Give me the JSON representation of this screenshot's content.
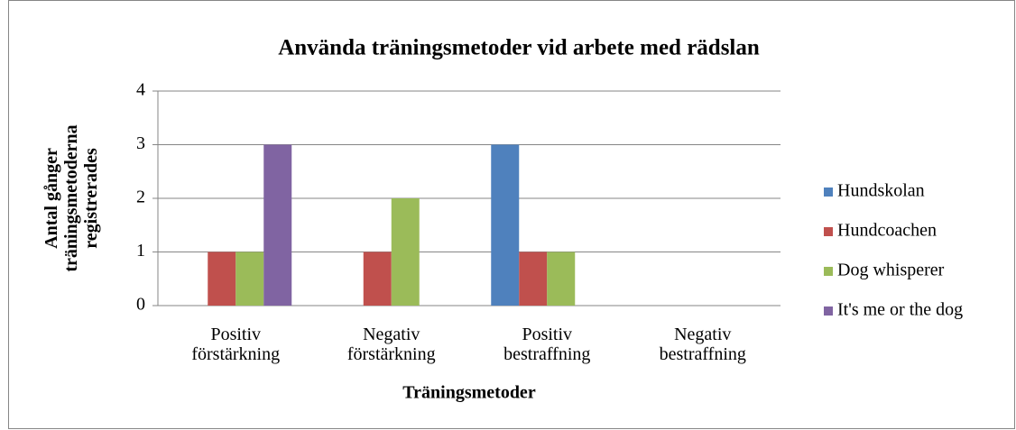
{
  "chart_data": {
    "type": "bar",
    "title": "Använda träningsmetoder vid arbete med rädslan",
    "xlabel": "Träningsmetoder",
    "ylabel": "Antal gånger\nträningsmetoderna\nregistrerades",
    "categories": [
      "Positiv\nförstärkning",
      "Negativ\nförstärkning",
      "Positiv\nbestraffning",
      "Negativ\nbestraffning"
    ],
    "series": [
      {
        "name": "Hundskolan",
        "color": "#4f81bd",
        "values": [
          0,
          0,
          3,
          0
        ]
      },
      {
        "name": "Hundcoachen",
        "color": "#c0504d",
        "values": [
          1,
          1,
          1,
          0
        ]
      },
      {
        "name": "Dog whisperer",
        "color": "#9bbb59",
        "values": [
          1,
          2,
          1,
          0
        ]
      },
      {
        "name": "It's me or the dog",
        "color": "#8064a2",
        "values": [
          3,
          0,
          0,
          0
        ]
      }
    ],
    "ylim": [
      0,
      4
    ],
    "yticks": [
      0,
      1,
      2,
      3,
      4
    ],
    "grid": true,
    "legend": "right"
  }
}
